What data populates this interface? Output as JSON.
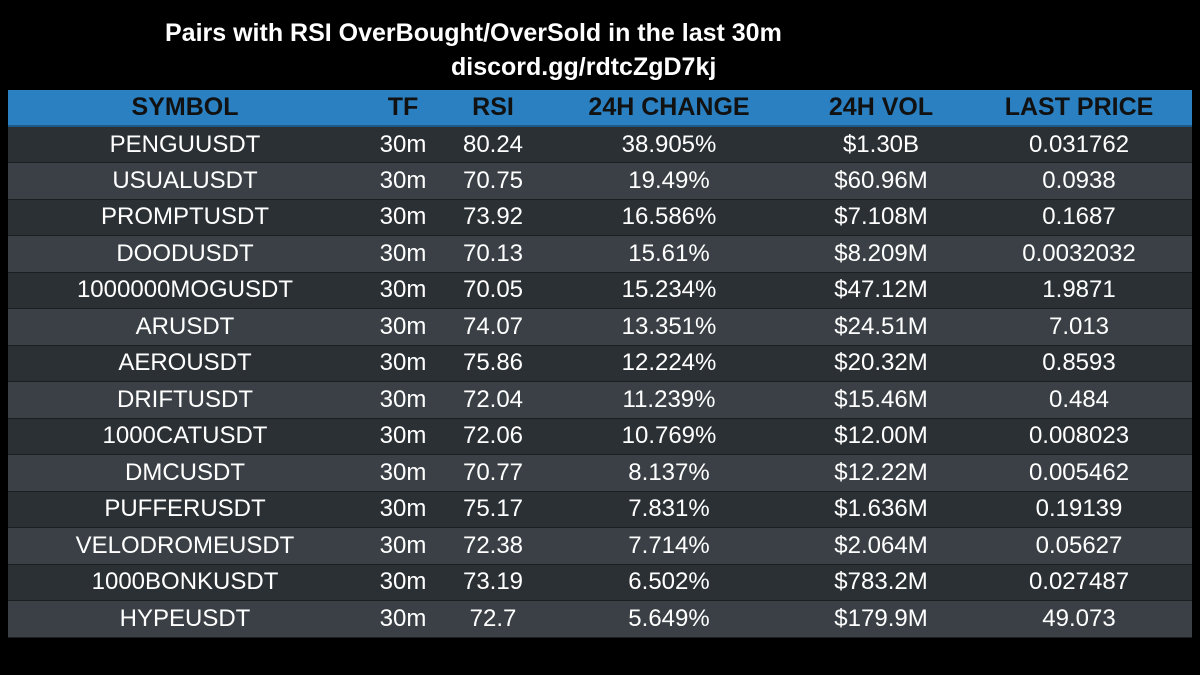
{
  "header": {
    "title": "Pairs with RSI OverBought/OverSold in the last 30m",
    "subtitle": "discord.gg/rdtcZgD7kj"
  },
  "colors": {
    "background": "#000000",
    "header_bg": "#2a80c0",
    "row_odd": "#2b3034",
    "row_even": "#3a4045"
  },
  "table": {
    "columns": [
      "SYMBOL",
      "TF",
      "RSI",
      "24H CHANGE",
      "24H VOL",
      "LAST PRICE"
    ],
    "rows": [
      [
        "PENGUUSDT",
        "30m",
        "80.24",
        "38.905%",
        "$1.30B",
        "0.031762"
      ],
      [
        "USUALUSDT",
        "30m",
        "70.75",
        "19.49%",
        "$60.96M",
        "0.0938"
      ],
      [
        "PROMPTUSDT",
        "30m",
        "73.92",
        "16.586%",
        "$7.108M",
        "0.1687"
      ],
      [
        "DOODUSDT",
        "30m",
        "70.13",
        "15.61%",
        "$8.209M",
        "0.0032032"
      ],
      [
        "1000000MOGUSDT",
        "30m",
        "70.05",
        "15.234%",
        "$47.12M",
        "1.9871"
      ],
      [
        "ARUSDT",
        "30m",
        "74.07",
        "13.351%",
        "$24.51M",
        "7.013"
      ],
      [
        "AEROUSDT",
        "30m",
        "75.86",
        "12.224%",
        "$20.32M",
        "0.8593"
      ],
      [
        "DRIFTUSDT",
        "30m",
        "72.04",
        "11.239%",
        "$15.46M",
        "0.484"
      ],
      [
        "1000CATUSDT",
        "30m",
        "72.06",
        "10.769%",
        "$12.00M",
        "0.008023"
      ],
      [
        "DMCUSDT",
        "30m",
        "70.77",
        "8.137%",
        "$12.22M",
        "0.005462"
      ],
      [
        "PUFFERUSDT",
        "30m",
        "75.17",
        "7.831%",
        "$1.636M",
        "0.19139"
      ],
      [
        "VELODROMEUSDT",
        "30m",
        "72.38",
        "7.714%",
        "$2.064M",
        "0.05627"
      ],
      [
        "1000BONKUSDT",
        "30m",
        "73.19",
        "6.502%",
        "$783.2M",
        "0.027487"
      ],
      [
        "HYPEUSDT",
        "30m",
        "72.7",
        "5.649%",
        "$179.9M",
        "49.073"
      ]
    ]
  }
}
